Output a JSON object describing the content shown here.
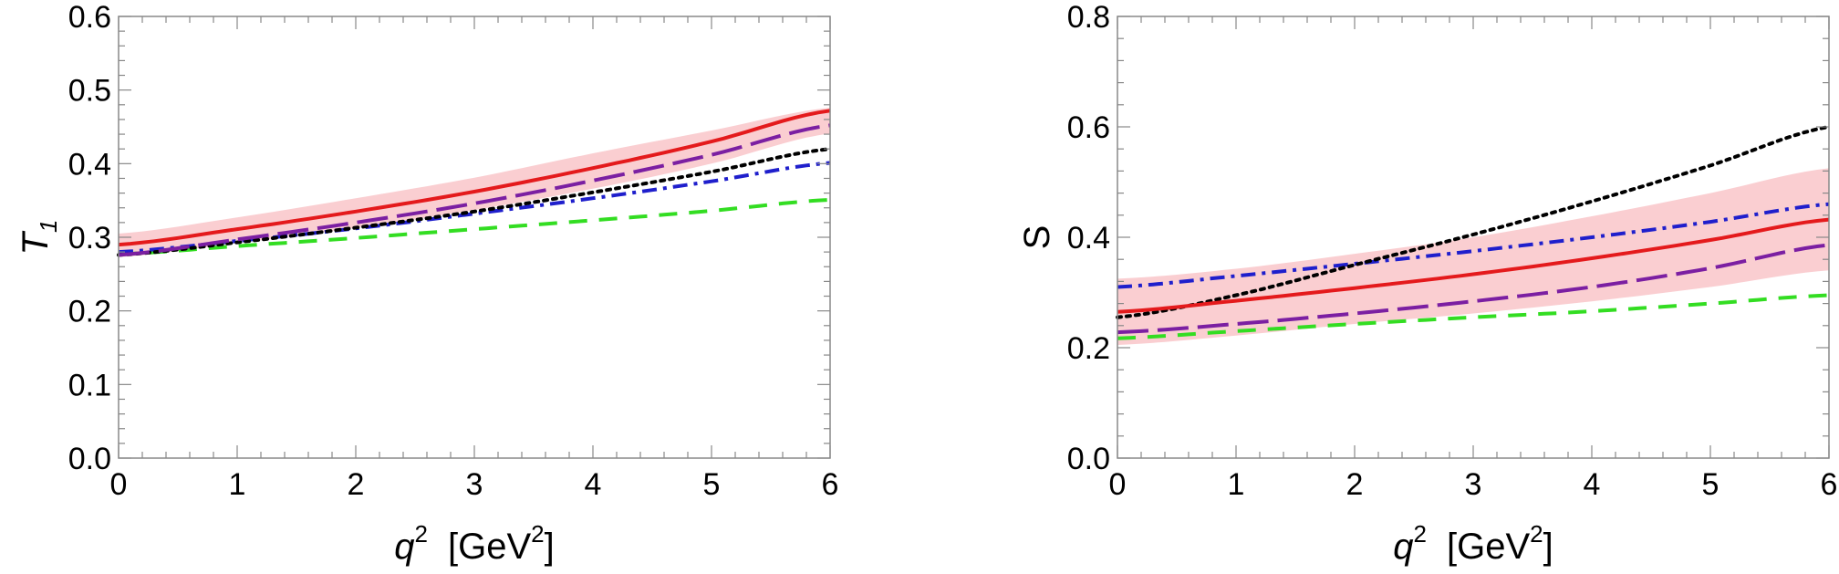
{
  "chart_data": [
    {
      "type": "line",
      "ylabel": "T",
      "ylabel_sub": "1",
      "xlabel": {
        "var": "q",
        "var_sup": "2",
        "unit_open": "[GeV",
        "unit_sup": "2",
        "unit_close": "]"
      },
      "xlim": [
        0,
        6
      ],
      "ylim": [
        0,
        0.6
      ],
      "x_ticks": [
        "0",
        "1",
        "2",
        "3",
        "4",
        "5",
        "6"
      ],
      "y_ticks": [
        "0.0",
        "0.1",
        "0.2",
        "0.3",
        "0.4",
        "0.5",
        "0.6"
      ],
      "x_tick_values": [
        0,
        1,
        2,
        3,
        4,
        5,
        6
      ],
      "y_tick_values": [
        0,
        0.1,
        0.2,
        0.3,
        0.4,
        0.5,
        0.6
      ],
      "grid": false,
      "x": [
        0,
        1,
        2,
        3,
        4,
        5,
        6
      ],
      "band": {
        "color": "#f9c6c9",
        "lower": [
          0.273,
          0.292,
          0.313,
          0.337,
          0.366,
          0.4,
          0.441
        ],
        "upper": [
          0.305,
          0.327,
          0.353,
          0.381,
          0.414,
          0.445,
          0.476
        ]
      },
      "series": [
        {
          "color": "#e41a1c",
          "style": "solid",
          "values": [
            0.29,
            0.311,
            0.335,
            0.362,
            0.394,
            0.43,
            0.472
          ]
        },
        {
          "color": "#7b1fa2",
          "style": "longdash",
          "values": [
            0.276,
            0.297,
            0.32,
            0.346,
            0.377,
            0.412,
            0.452
          ]
        },
        {
          "color": "#000000",
          "style": "dotted",
          "values": [
            0.276,
            0.293,
            0.313,
            0.335,
            0.361,
            0.389,
            0.42
          ]
        },
        {
          "color": "#1f1fcc",
          "style": "dashdot",
          "values": [
            0.28,
            0.295,
            0.312,
            0.332,
            0.353,
            0.376,
            0.401
          ]
        },
        {
          "color": "#33dd22",
          "style": "dashed",
          "values": [
            0.277,
            0.288,
            0.299,
            0.311,
            0.323,
            0.336,
            0.351
          ]
        }
      ]
    },
    {
      "type": "line",
      "ylabel": "S",
      "ylabel_sub": "",
      "xlabel": {
        "var": "q",
        "var_sup": "2",
        "unit_open": "[GeV",
        "unit_sup": "2",
        "unit_close": "]"
      },
      "xlim": [
        0,
        6
      ],
      "ylim": [
        0,
        0.8
      ],
      "x_ticks": [
        "0",
        "1",
        "2",
        "3",
        "4",
        "5",
        "6"
      ],
      "y_ticks": [
        "0.0",
        "0.2",
        "0.4",
        "0.6",
        "0.8"
      ],
      "x_tick_values": [
        0,
        1,
        2,
        3,
        4,
        5,
        6
      ],
      "y_tick_values": [
        0,
        0.2,
        0.4,
        0.6,
        0.8
      ],
      "grid": false,
      "x": [
        0,
        1,
        2,
        3,
        4,
        5,
        6
      ],
      "band": {
        "color": "#f9c6c9",
        "lower": [
          0.205,
          0.222,
          0.243,
          0.262,
          0.284,
          0.31,
          0.34
        ],
        "upper": [
          0.325,
          0.343,
          0.37,
          0.4,
          0.438,
          0.48,
          0.525
        ]
      },
      "series": [
        {
          "color": "#e41a1c",
          "style": "solid",
          "values": [
            0.265,
            0.285,
            0.308,
            0.333,
            0.362,
            0.395,
            0.432
          ]
        },
        {
          "color": "#7b1fa2",
          "style": "longdash",
          "values": [
            0.228,
            0.243,
            0.262,
            0.284,
            0.31,
            0.344,
            0.386
          ]
        },
        {
          "color": "#000000",
          "style": "dotted",
          "values": [
            0.255,
            0.295,
            0.35,
            0.405,
            0.465,
            0.53,
            0.6
          ]
        },
        {
          "color": "#1f1fcc",
          "style": "dashdot",
          "values": [
            0.31,
            0.33,
            0.352,
            0.375,
            0.4,
            0.428,
            0.46
          ]
        },
        {
          "color": "#33dd22",
          "style": "dashed",
          "values": [
            0.217,
            0.23,
            0.243,
            0.255,
            0.266,
            0.28,
            0.295
          ]
        }
      ]
    }
  ]
}
